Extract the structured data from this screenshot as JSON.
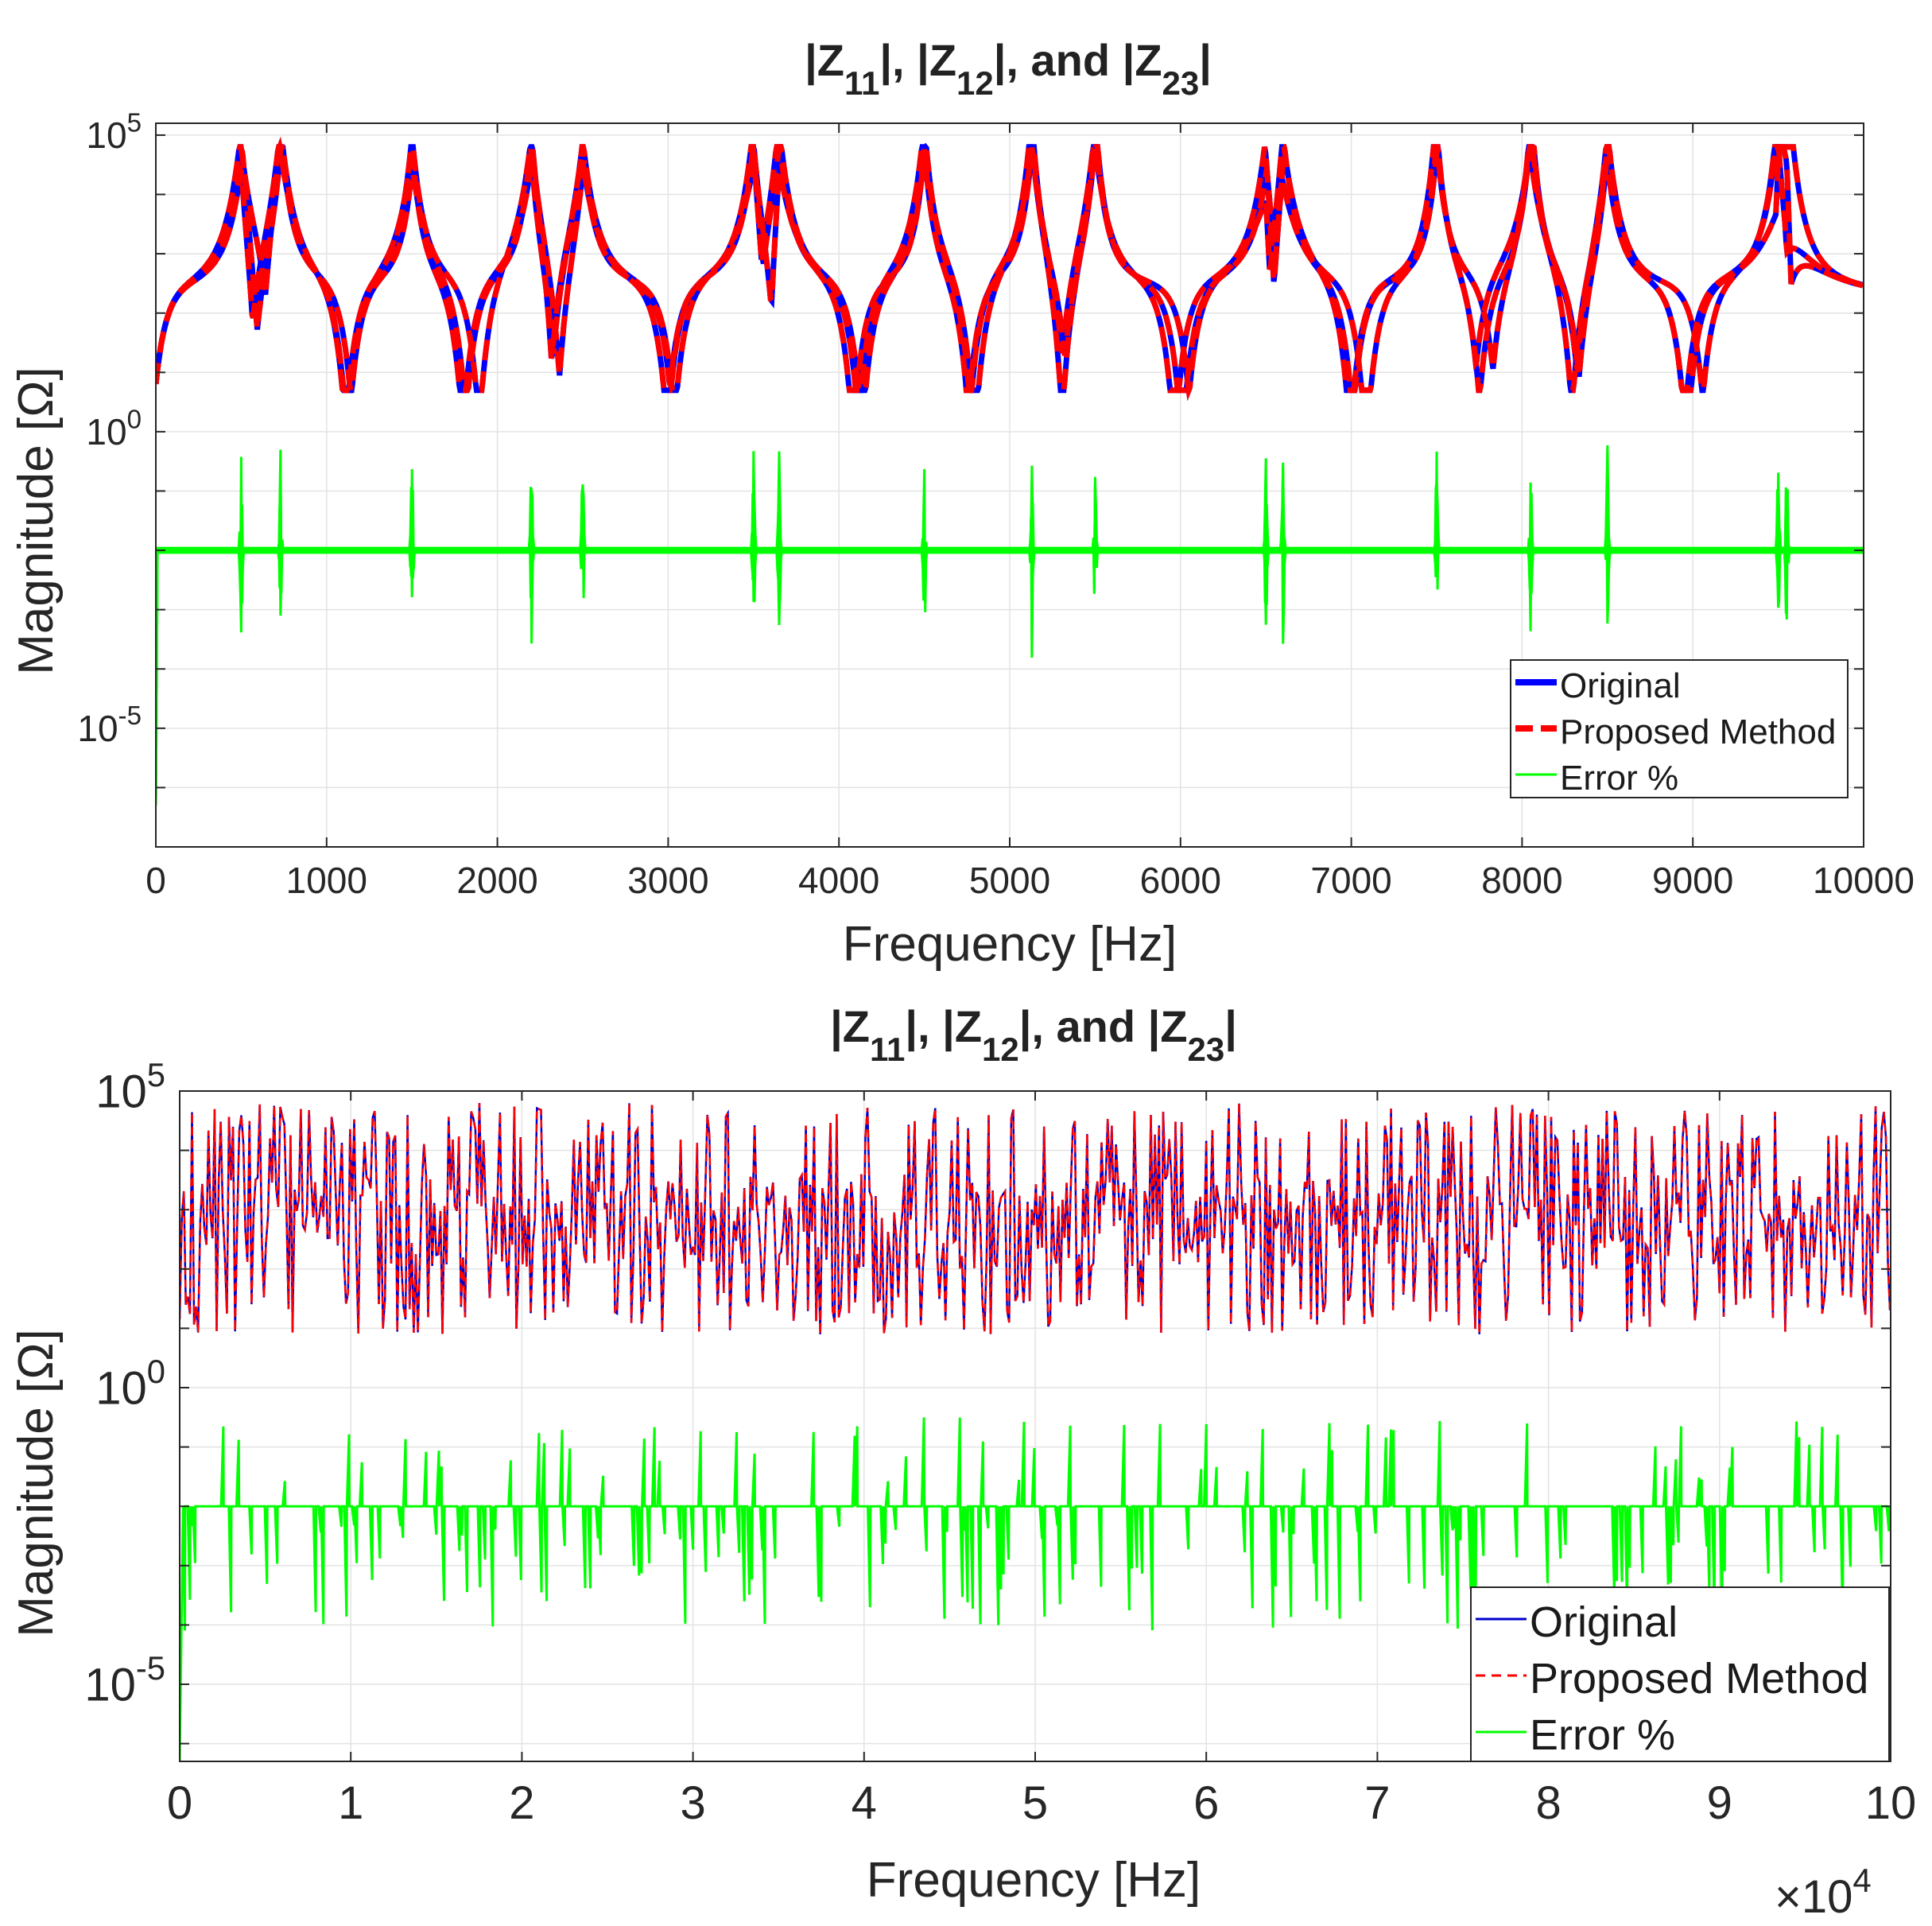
{
  "chart_data": [
    {
      "type": "line",
      "title_parts": [
        "|Z",
        "11",
        "|, |Z",
        "12",
        "|, and |Z",
        "23",
        "|"
      ],
      "xlabel": "Frequency [Hz]",
      "ylabel": "Magnitude [Ω]",
      "yscale": "log",
      "xlim": [
        0,
        10000
      ],
      "ylim_exp": [
        -7,
        5.2
      ],
      "xticks": [
        0,
        1000,
        2000,
        3000,
        4000,
        5000,
        6000,
        7000,
        8000,
        9000,
        10000
      ],
      "xtick_labels": [
        "0",
        "1000",
        "2000",
        "3000",
        "4000",
        "5000",
        "6000",
        "7000",
        "8000",
        "9000",
        "10000"
      ],
      "yticks": [
        {
          "base": "10",
          "exp": "5",
          "value_exp": 5
        },
        {
          "base": "10",
          "exp": "0",
          "value_exp": 0
        },
        {
          "base": "10",
          "exp": "-5",
          "value_exp": -5
        }
      ],
      "x_multiplier": null,
      "grid": true,
      "legend_position": "bottom-right",
      "series": [
        {
          "name": "Original",
          "color": "#0000ff",
          "style": "solid"
        },
        {
          "name": "Proposed Method",
          "color": "#ff0000",
          "style": "dashed"
        },
        {
          "name": "Error %",
          "color": "#00ff00",
          "style": "solid"
        }
      ],
      "resonances_hz": [
        500,
        730,
        1500,
        2200,
        2500,
        3500,
        3650,
        4500,
        5130,
        5500,
        6500,
        6600,
        7500,
        8050,
        8500,
        9500,
        9550
      ],
      "error_baseline_exp": -2
    },
    {
      "type": "line",
      "title_parts": [
        "|Z",
        "11",
        "|, |Z",
        "12",
        "|, and |Z",
        "23",
        "|"
      ],
      "xlabel": "Frequency [Hz]",
      "ylabel": "Magnitude [Ω]",
      "yscale": "log",
      "xlim": [
        0,
        100000
      ],
      "ylim_exp": [
        -6.3,
        5
      ],
      "xticks": [
        0,
        10000,
        20000,
        30000,
        40000,
        50000,
        60000,
        70000,
        80000,
        90000,
        100000
      ],
      "xtick_labels": [
        "0",
        "1",
        "2",
        "3",
        "4",
        "5",
        "6",
        "7",
        "8",
        "9",
        "10"
      ],
      "yticks": [
        {
          "base": "10",
          "exp": "5",
          "value_exp": 5
        },
        {
          "base": "10",
          "exp": "0",
          "value_exp": 0
        },
        {
          "base": "10",
          "exp": "-5",
          "value_exp": -5
        }
      ],
      "x_multiplier": {
        "prefix": "×10",
        "exp": "4"
      },
      "grid": true,
      "legend_position": "bottom-right",
      "series": [
        {
          "name": "Original",
          "color": "#0000cd",
          "style": "solid"
        },
        {
          "name": "Proposed Method",
          "color": "#ff0000",
          "style": "dashed"
        },
        {
          "name": "Error %",
          "color": "#00ff00",
          "style": "solid"
        }
      ],
      "error_baseline_exp": -2
    }
  ]
}
